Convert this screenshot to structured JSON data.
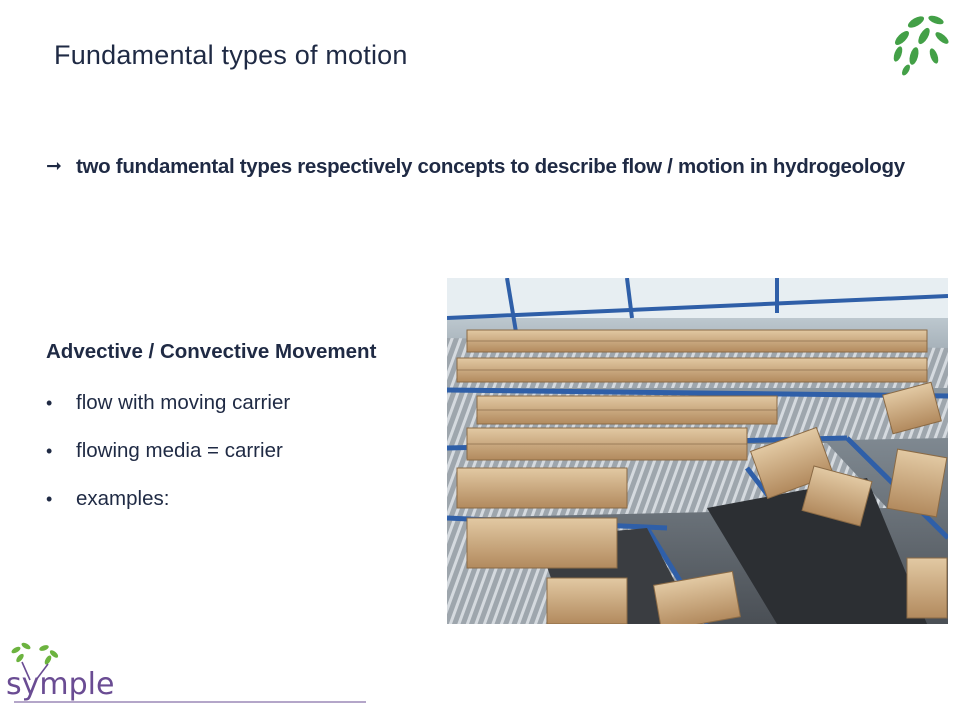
{
  "slide": {
    "title": "Fundamental types of motion",
    "lead": {
      "arrow": "➞",
      "text": "two fundamental types respectively concepts to describe flow / motion in hydrogeology"
    },
    "section_heading": "Advective / Convective Movement",
    "bullet_char": "•",
    "bullets": [
      "flow with moving carrier",
      "flowing media = carrier",
      "examples:"
    ],
    "photo_icon": "conveyor-belt-boxes-photo",
    "logo_text": "symple",
    "colors": {
      "text": "#1f2a44",
      "leaf_green": "#4caf50",
      "logo_purple": "#6a4c93",
      "conveyor_blue": "#2f5fa8",
      "box_brown": "#c49a6c"
    }
  }
}
